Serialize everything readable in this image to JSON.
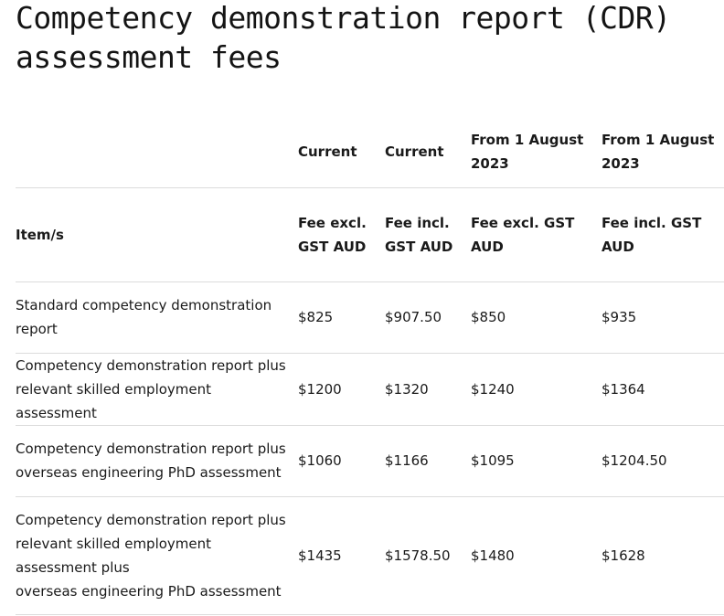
{
  "page": {
    "title": "Competency demonstration report (CDR) assessment fees"
  },
  "table": {
    "header_row1": [
      "",
      "Current",
      "Current",
      "From 1 August 2023",
      "From 1 August 2023"
    ],
    "header_row2": [
      "Item/s",
      "Fee excl. GST AUD",
      "Fee incl. GST AUD",
      "Fee excl. GST AUD",
      "Fee incl. GST AUD"
    ],
    "rows": [
      {
        "item": "Standard competency demonstration report",
        "fees": [
          "$825",
          "$907.50",
          "$850",
          "$935"
        ]
      },
      {
        "item": "Competency demonstration report plus relevant skilled employment assessment",
        "fees": [
          "$1200",
          "$1320",
          "$1240",
          "$1364"
        ]
      },
      {
        "item": "Competency demonstration report plus overseas engineering PhD assessment",
        "fees": [
          "$1060",
          "$1166",
          "$1095",
          "$1204.50"
        ]
      },
      {
        "item": "Competency demonstration report plus relevant skilled employment assessment plus\noverseas engineering PhD assessment",
        "fees": [
          "$1435",
          "$1578.50",
          "$1480",
          "$1628"
        ]
      }
    ]
  }
}
